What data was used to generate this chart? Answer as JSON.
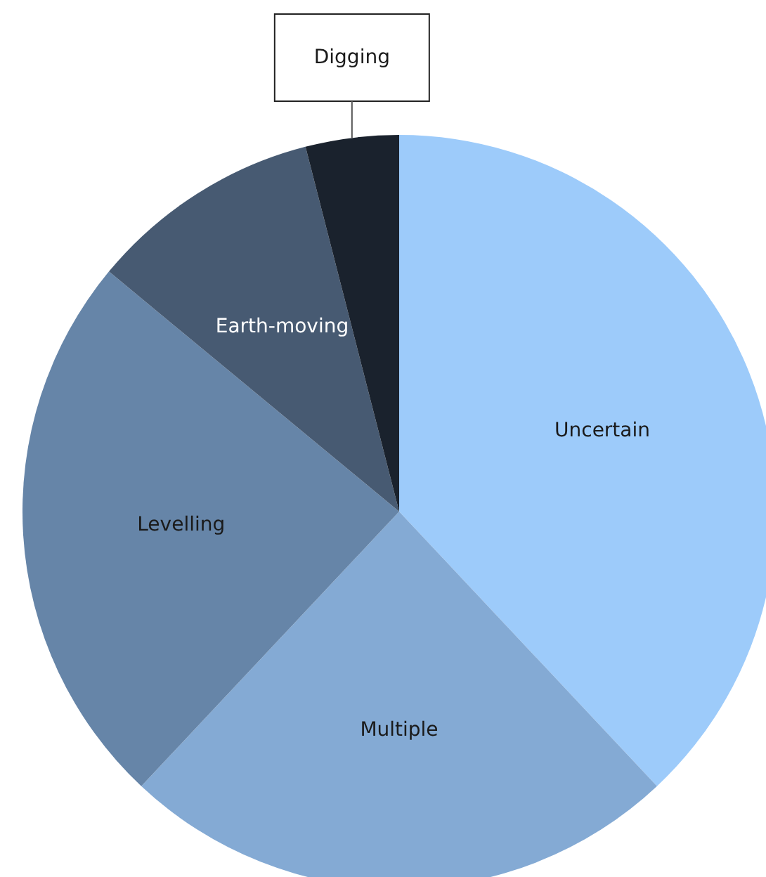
{
  "chart_data": {
    "type": "pie",
    "categories": [
      "Uncertain",
      "Multiple",
      "Levelling",
      "Earth-moving",
      "Digging"
    ],
    "values": [
      38,
      24,
      24,
      10,
      4
    ],
    "colors": [
      "#9dcbfa",
      "#84aad4",
      "#6685a8",
      "#475a72",
      "#1a222d"
    ]
  }
}
